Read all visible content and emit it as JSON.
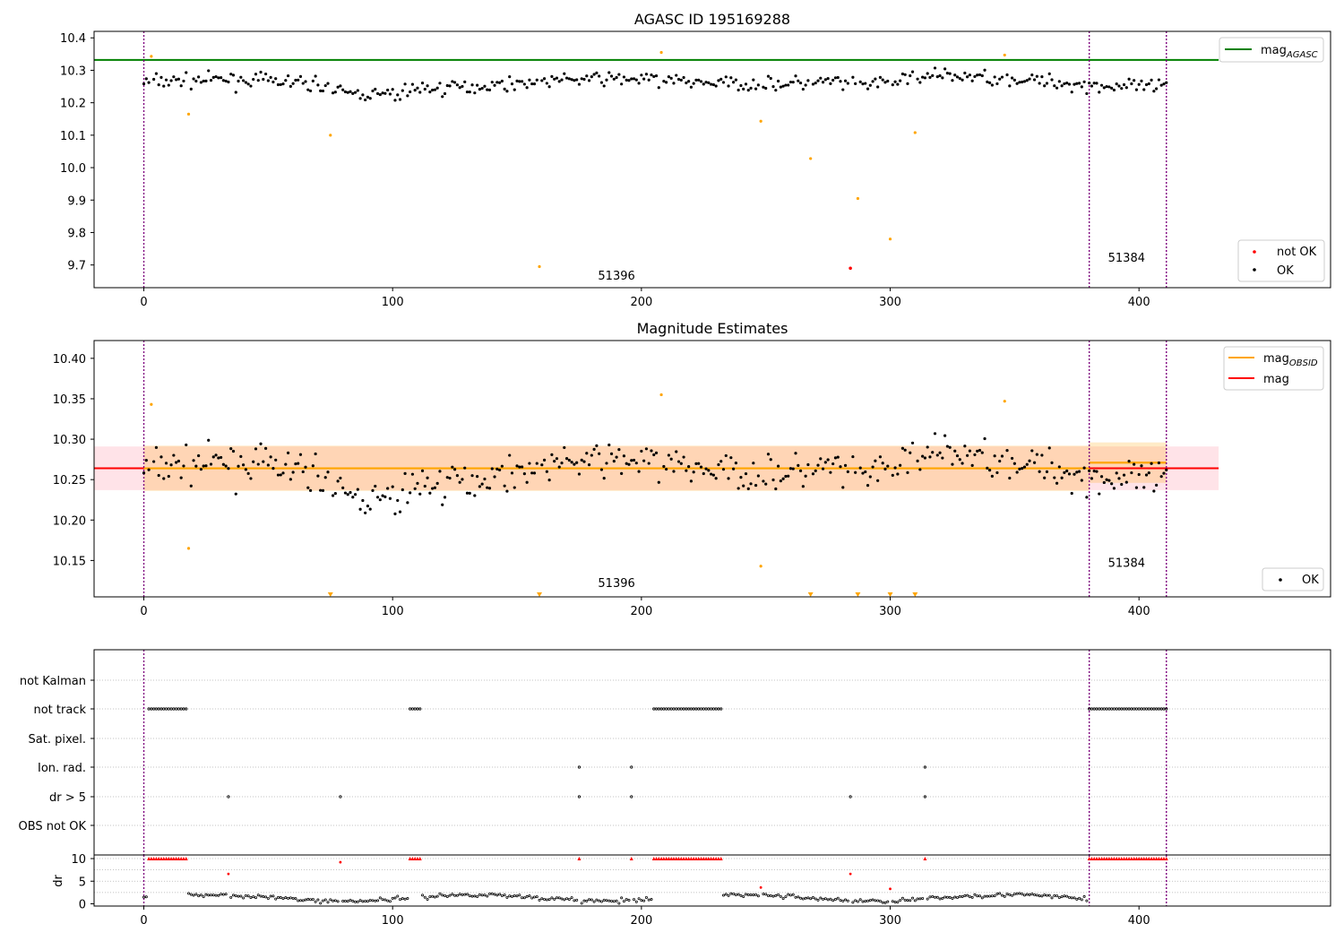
{
  "chart_data": [
    {
      "type": "scatter",
      "title": "AGASC ID 195169288",
      "xlabel": "",
      "ylabel": "",
      "xlim": [
        -20,
        477
      ],
      "ylim": [
        9.63,
        10.42
      ],
      "xticks": [
        0,
        100,
        200,
        300,
        400
      ],
      "yticks": [
        9.7,
        9.8,
        9.9,
        10.0,
        10.1,
        10.2,
        10.3,
        10.4
      ],
      "ytick_labels": [
        "9.7",
        "9.8",
        "9.9",
        "10.0",
        "10.1",
        "10.2",
        "10.3",
        "10.4"
      ],
      "grid": false,
      "obs_boundaries": [
        0,
        380,
        411
      ],
      "obs_labels": [
        {
          "text": "51396",
          "x": 190,
          "y": 9.655
        },
        {
          "text": "51384",
          "x": 395,
          "y": 9.71
        }
      ],
      "hlines": [
        {
          "name": "mag_AGASC",
          "y": 10.332,
          "x_range": [
            -20,
            432
          ],
          "color": "#008000"
        }
      ],
      "series": [
        {
          "name": "not OK",
          "color": "#ff0000",
          "points": [
            [
              284,
              9.69
            ]
          ]
        },
        {
          "name": "OK",
          "color": "#000000",
          "note": "about 390 black points scattered around 10.26 between 10.19 and 10.34"
        },
        {
          "name": "",
          "color": "#ffa500",
          "points": [
            [
              3,
              10.343
            ],
            [
              18,
              10.165
            ],
            [
              75,
              10.1
            ],
            [
              159,
              9.695
            ],
            [
              208,
              10.355
            ],
            [
              248,
              10.143
            ],
            [
              268,
              10.028
            ],
            [
              287,
              9.905
            ],
            [
              300,
              9.78
            ],
            [
              310,
              10.108
            ],
            [
              346,
              10.347
            ]
          ]
        }
      ],
      "legend_upper": {
        "line_label": "mag",
        "line_sub": "AGASC",
        "position": "top-right"
      },
      "legend_lower": {
        "items": [
          "not OK",
          "OK"
        ],
        "position": "bottom-right"
      }
    },
    {
      "type": "scatter",
      "title": "Magnitude Estimates",
      "xlabel": "",
      "ylabel": "",
      "xlim": [
        -20,
        477
      ],
      "ylim": [
        10.105,
        10.422
      ],
      "xticks": [
        0,
        100,
        200,
        300,
        400
      ],
      "yticks": [
        10.15,
        10.2,
        10.25,
        10.3,
        10.35,
        10.4
      ],
      "ytick_labels": [
        "10.15",
        "10.20",
        "10.25",
        "10.30",
        "10.35",
        "10.40"
      ],
      "grid": false,
      "obs_boundaries": [
        0,
        380,
        411
      ],
      "obs_labels": [
        {
          "text": "51396",
          "x": 190,
          "y": 10.117
        },
        {
          "text": "51384",
          "x": 395,
          "y": 10.142
        }
      ],
      "mag": {
        "value": 10.264,
        "band": [
          10.237,
          10.291
        ],
        "x_range": [
          -20,
          432
        ],
        "color": "#ff0000"
      },
      "mag_obsid": [
        {
          "x_range": [
            0,
            380
          ],
          "value": 10.264,
          "band": [
            10.236,
            10.292
          ]
        },
        {
          "x_range": [
            380,
            411
          ],
          "value": 10.271,
          "band": [
            10.246,
            10.296
          ]
        }
      ],
      "offscale_markers_x": [
        75,
        159,
        268,
        287,
        300,
        310
      ],
      "series": [
        {
          "name": "OK",
          "color": "#000000"
        },
        {
          "name": "",
          "color": "#ffa500",
          "points": [
            [
              3,
              10.343
            ],
            [
              18,
              10.165
            ],
            [
              208,
              10.355
            ],
            [
              248,
              10.143
            ],
            [
              346,
              10.347
            ]
          ]
        }
      ],
      "legend_upper": {
        "items": [
          {
            "label": "mag",
            "sub": "OBSID",
            "color": "#ffa500"
          },
          {
            "label": "mag",
            "sub": "",
            "color": "#ff0000"
          }
        ],
        "position": "top-right"
      },
      "legend_lower": {
        "items": [
          "OK"
        ],
        "position": "bottom-right"
      }
    },
    {
      "type": "scatter",
      "title": "",
      "xlim": [
        -20,
        477
      ],
      "xticks": [
        0,
        100,
        200,
        300,
        400
      ],
      "flag_rows": [
        "not Kalman",
        "not track",
        "Sat. pixel.",
        "Ion. rad.",
        "dr > 5",
        "OBS not OK"
      ],
      "flags": {
        "not track": [
          [
            2,
            17
          ],
          [
            107,
            111
          ],
          [
            205,
            232
          ],
          [
            380,
            411
          ]
        ],
        "Ion. rad.": [
          175,
          196,
          314
        ],
        "dr > 5": [
          34,
          79,
          175,
          196,
          284,
          314
        ]
      },
      "obs_boundaries": [
        0,
        380,
        411
      ]
    },
    {
      "type": "scatter",
      "title": "",
      "ylabel": "dr",
      "xlim": [
        -20,
        477
      ],
      "ylim": [
        -0.5,
        10.8
      ],
      "xticks": [
        0,
        100,
        200,
        300,
        400
      ],
      "yticks": [
        0,
        5,
        10
      ],
      "ytick_labels": [
        "0",
        "5",
        "10"
      ],
      "clipped_at": 10,
      "red_points": [
        [
          34,
          6.6
        ],
        [
          79,
          9.2
        ],
        [
          248,
          3.6
        ],
        [
          284,
          6.6
        ],
        [
          300,
          3.3
        ]
      ],
      "obs_boundaries": [
        0,
        380,
        411
      ]
    }
  ]
}
